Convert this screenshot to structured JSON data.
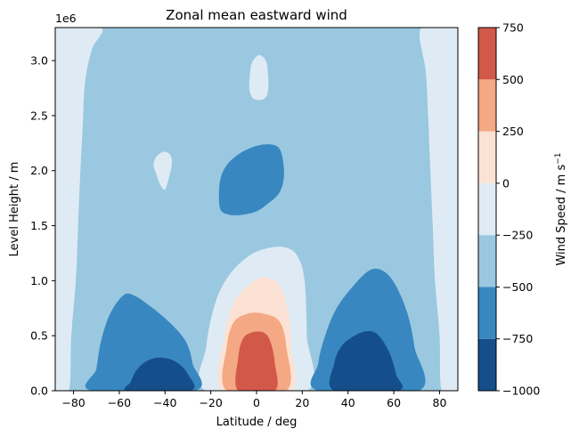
{
  "chart_data": {
    "type": "contourf",
    "title": "Zonal mean eastward wind",
    "xlabel": "Latitude / deg",
    "ylabel": "Level Height / m",
    "y_offset_label": "1e6",
    "colorbar_label": "Wind Speed / m s",
    "colorbar_label_sup": "−1",
    "xlim": [
      -88,
      88
    ],
    "ylim": [
      0,
      3300000
    ],
    "xticks": [
      -80,
      -60,
      -40,
      -20,
      0,
      20,
      40,
      60,
      80
    ],
    "xtick_labels": [
      "−80",
      "−60",
      "−40",
      "−20",
      "0",
      "20",
      "40",
      "60",
      "80"
    ],
    "yticks": [
      0,
      500000,
      1000000,
      1500000,
      2000000,
      2500000,
      3000000
    ],
    "ytick_labels": [
      "0.0",
      "0.5",
      "1.0",
      "1.5",
      "2.0",
      "2.5",
      "3.0"
    ],
    "levels": [
      -1000,
      -750,
      -500,
      -250,
      0,
      250,
      500,
      750
    ],
    "level_labels": [
      "−1000",
      "−750",
      "−500",
      "−250",
      "0",
      "250",
      "500",
      "750"
    ],
    "colors": [
      "#154f8b",
      "#3887c0",
      "#9ac8e0",
      "#dfebf4",
      "#fbe2d4",
      "#f4a884",
      "#d25849"
    ],
    "regions": [
      {
        "name": "background-band",
        "level_range": [
          -500,
          -250
        ],
        "polygon": [
          [
            -88,
            0
          ],
          [
            88,
            0
          ],
          [
            88,
            3300000
          ],
          [
            -88,
            3300000
          ]
        ]
      },
      {
        "name": "left-outer-band",
        "level_range": [
          -250,
          0
        ],
        "polygon": [
          [
            -88,
            0
          ],
          [
            -82,
            0
          ],
          [
            -81,
            500000
          ],
          [
            -79,
            1000000
          ],
          [
            -78,
            1500000
          ],
          [
            -77,
            2000000
          ],
          [
            -76,
            2400000
          ],
          [
            -75,
            2800000
          ],
          [
            -72,
            3100000
          ],
          [
            -68,
            3300000
          ],
          [
            -88,
            3300000
          ]
        ]
      },
      {
        "name": "right-outer-band",
        "level_range": [
          -250,
          0
        ],
        "polygon": [
          [
            88,
            0
          ],
          [
            81,
            0
          ],
          [
            80,
            500000
          ],
          [
            78,
            1000000
          ],
          [
            77,
            1500000
          ],
          [
            76,
            2000000
          ],
          [
            75,
            2500000
          ],
          [
            74,
            2900000
          ],
          [
            72,
            3300000
          ],
          [
            88,
            3300000
          ]
        ]
      },
      {
        "name": "equatorial-upper-cell",
        "level_range": [
          -250,
          0
        ],
        "polygon": [
          [
            -22,
            0
          ],
          [
            -22,
            400000
          ],
          [
            -18,
            800000
          ],
          [
            -12,
            1050000
          ],
          [
            -3,
            1230000
          ],
          [
            6,
            1300000
          ],
          [
            13,
            1300000
          ],
          [
            18,
            1220000
          ],
          [
            21,
            1000000
          ],
          [
            22,
            500000
          ],
          [
            22,
            0
          ]
        ]
      },
      {
        "name": "equatorial-light-cell",
        "level_range": [
          0,
          250
        ],
        "polygon": [
          [
            -15,
            0
          ],
          [
            -14,
            500000
          ],
          [
            -10,
            800000
          ],
          [
            -4,
            950000
          ],
          [
            3,
            1030000
          ],
          [
            10,
            960000
          ],
          [
            14,
            700000
          ],
          [
            15,
            400000
          ],
          [
            15,
            0
          ]
        ]
      },
      {
        "name": "equatorial-mid-cell",
        "level_range": [
          250,
          500
        ],
        "polygon": [
          [
            -13,
            0
          ],
          [
            -13,
            400000
          ],
          [
            -10,
            620000
          ],
          [
            -4,
            700000
          ],
          [
            3,
            700000
          ],
          [
            10,
            630000
          ],
          [
            13,
            400000
          ],
          [
            13,
            0
          ]
        ]
      },
      {
        "name": "equatorial-core-cell",
        "level_range": [
          500,
          750
        ],
        "polygon": [
          [
            -8,
            0
          ],
          [
            -8,
            300000
          ],
          [
            -6,
            470000
          ],
          [
            -2,
            530000
          ],
          [
            3,
            530000
          ],
          [
            6,
            450000
          ],
          [
            8,
            250000
          ],
          [
            8,
            0
          ]
        ]
      },
      {
        "name": "southern-jet-outer",
        "level_range": [
          -750,
          -500
        ],
        "polygon": [
          [
            -72,
            0
          ],
          [
            -70,
            200000
          ],
          [
            -68,
            450000
          ],
          [
            -64,
            700000
          ],
          [
            -58,
            870000
          ],
          [
            -53,
            860000
          ],
          [
            -46,
            760000
          ],
          [
            -38,
            620000
          ],
          [
            -31,
            450000
          ],
          [
            -28,
            250000
          ],
          [
            -27,
            0
          ]
        ]
      },
      {
        "name": "southern-jet-core",
        "level_range": [
          -1000,
          -750
        ],
        "polygon": [
          [
            -56,
            0
          ],
          [
            -55,
            80000
          ],
          [
            -52,
            200000
          ],
          [
            -47,
            280000
          ],
          [
            -41,
            300000
          ],
          [
            -35,
            260000
          ],
          [
            -30,
            150000
          ],
          [
            -29,
            0
          ]
        ]
      },
      {
        "name": "northern-jet-outer",
        "level_range": [
          -750,
          -500
        ],
        "polygon": [
          [
            27,
            0
          ],
          [
            27,
            250000
          ],
          [
            30,
            500000
          ],
          [
            35,
            750000
          ],
          [
            43,
            970000
          ],
          [
            50,
            1100000
          ],
          [
            56,
            1080000
          ],
          [
            61,
            950000
          ],
          [
            66,
            700000
          ],
          [
            69,
            400000
          ],
          [
            71,
            0
          ]
        ]
      },
      {
        "name": "northern-jet-core",
        "level_range": [
          -1000,
          -750
        ],
        "polygon": [
          [
            34,
            0
          ],
          [
            34,
            250000
          ],
          [
            37,
            400000
          ],
          [
            42,
            490000
          ],
          [
            48,
            540000
          ],
          [
            53,
            510000
          ],
          [
            58,
            350000
          ],
          [
            61,
            150000
          ],
          [
            62,
            0
          ]
        ]
      },
      {
        "name": "upper-blob",
        "level_range": [
          -750,
          -500
        ],
        "polygon": [
          [
            -16,
            1660000
          ],
          [
            -16,
            1900000
          ],
          [
            -13,
            2050000
          ],
          [
            -7,
            2160000
          ],
          [
            1,
            2230000
          ],
          [
            8,
            2230000
          ],
          [
            11,
            2150000
          ],
          [
            12,
            1950000
          ],
          [
            10,
            1800000
          ],
          [
            5,
            1700000
          ],
          [
            0,
            1630000
          ],
          [
            -6,
            1600000
          ],
          [
            -12,
            1600000
          ]
        ]
      },
      {
        "name": "small-blob-left",
        "level_range": [
          -250,
          0
        ],
        "polygon": [
          [
            -45,
            2050000
          ],
          [
            -44,
            2120000
          ],
          [
            -41,
            2170000
          ],
          [
            -38,
            2150000
          ],
          [
            -37,
            2080000
          ],
          [
            -38,
            1960000
          ],
          [
            -40,
            1830000
          ],
          [
            -42,
            1870000
          ],
          [
            -44,
            1980000
          ]
        ]
      },
      {
        "name": "small-blob-top",
        "level_range": [
          -250,
          0
        ],
        "polygon": [
          [
            -3,
            2720000
          ],
          [
            -3,
            2850000
          ],
          [
            -2,
            2980000
          ],
          [
            1,
            3050000
          ],
          [
            4,
            3000000
          ],
          [
            5,
            2880000
          ],
          [
            5,
            2720000
          ],
          [
            3,
            2650000
          ],
          [
            -1,
            2650000
          ]
        ]
      }
    ]
  }
}
